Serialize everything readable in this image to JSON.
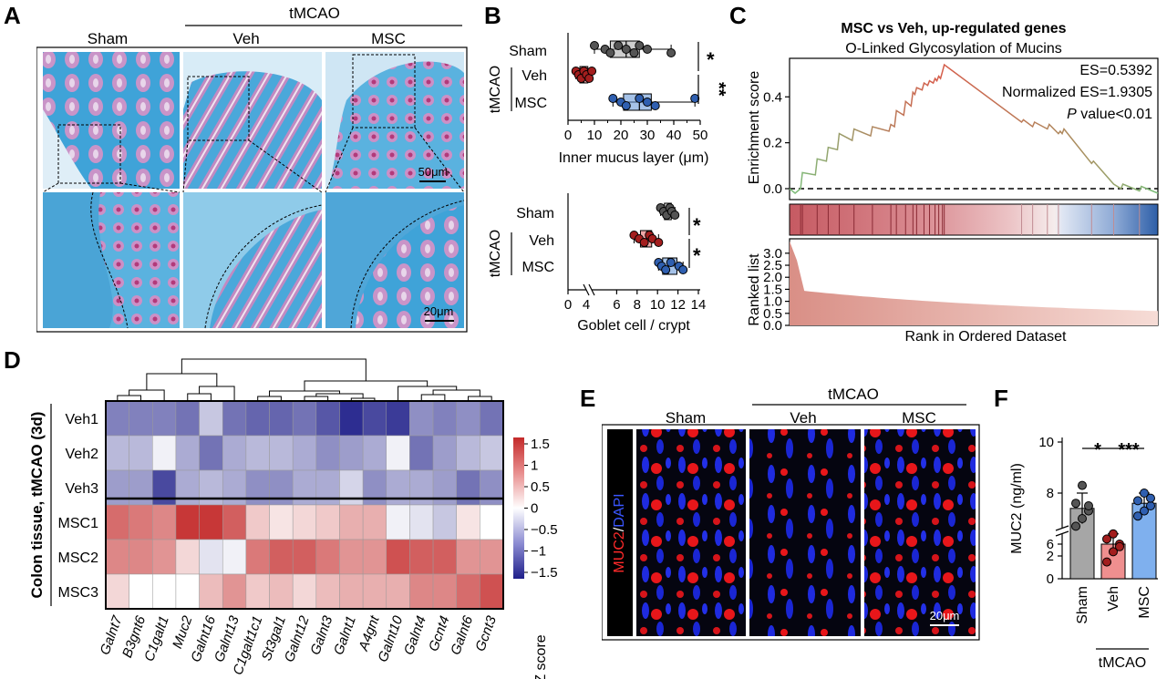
{
  "panels": {
    "A": "A",
    "B": "B",
    "C": "C",
    "D": "D",
    "E": "E",
    "F": "F"
  },
  "panel_a": {
    "group_title": "tMCAO",
    "columns": [
      "Sham",
      "Veh",
      "MSC"
    ],
    "scale_top": "50μm",
    "scale_bottom": "20μm"
  },
  "panel_b": {
    "group": "tMCAO",
    "top": {
      "xlabel": "Inner mucus layer (μm)",
      "ticks": [
        "0",
        "5",
        "10",
        "15",
        "20",
        "25",
        "30",
        "35",
        "40",
        "45",
        "50"
      ],
      "rows": [
        "Sham",
        "Veh",
        "MSC"
      ],
      "sig": [
        "*",
        "**"
      ]
    },
    "bottom": {
      "xlabel": "Goblet cell / crypt",
      "ticks": [
        "0",
        "6",
        "8",
        "10",
        "12",
        "14"
      ],
      "rows": [
        "Sham",
        "Veh",
        "MSC"
      ],
      "sig": [
        "*",
        "*"
      ]
    }
  },
  "panel_c": {
    "title": "MSC vs Veh, up-regulated genes",
    "subtitle": "O-Linked Glycosylation of Mucins",
    "es": "ES=0.5392",
    "nes": "Normalized ES=1.9305",
    "p_italic": "P",
    "p_rest": " value<0.01",
    "ylabel_top": "Enrichment score",
    "ylabel_bottom": "Ranked list",
    "yticks_top": [
      "0.0",
      "0.2",
      "0.4"
    ],
    "yticks_bottom": [
      "0.0",
      "0.5",
      "1.0",
      "1.5",
      "2.0",
      "2.5",
      "3.0"
    ],
    "xlabel": "Rank in Ordered Dataset"
  },
  "panel_d": {
    "ylabel": "Colon tissue, tMCAO (3d)",
    "rows": [
      "Veh1",
      "Veh2",
      "Veh3",
      "MSC1",
      "MSC2",
      "MSC3"
    ],
    "genes": [
      "Galnt7",
      "B3gnt6",
      "C1galt1",
      "Muc2",
      "Galnt16",
      "Galnt13",
      "C1galt1c1",
      "St3gal1",
      "Galnt12",
      "Galnt3",
      "Galnt1",
      "A4gnt",
      "Galnt10",
      "Galnt4",
      "Gcnt4",
      "Galnt6",
      "Gcnt3"
    ],
    "colorbar_ticks": [
      "1.5",
      "1",
      "0.5",
      "0",
      "−0.5",
      "−1",
      "−1.5"
    ],
    "colorbar_label": "Z score"
  },
  "panel_e": {
    "group_title": "tMCAO",
    "columns": [
      "Sham",
      "Veh",
      "MSC"
    ],
    "side_label_red": "MUC2",
    "side_label_sep": "/",
    "side_label_blue": "DAPI",
    "scale": "20μm"
  },
  "panel_f": {
    "ylabel": "MUC2 (ng/ml)",
    "yticks": [
      "0",
      "2",
      "6",
      "8",
      "10"
    ],
    "xlabels": [
      "Sham",
      "Veh",
      "MSC"
    ],
    "group": "tMCAO",
    "sig": [
      "*",
      "***"
    ]
  },
  "colors": {
    "sham": "#a6a6a6",
    "veh": "#e06060",
    "msc": "#5b8fd6",
    "tissue_blue": "#4aa6d6",
    "tissue_pink": "#c58fc3",
    "heat_red": "#c42a2a",
    "heat_blue": "#2a2a8c"
  },
  "chart_data": [
    {
      "type": "box",
      "panel": "B-top",
      "xlabel": "Inner mucus layer (μm)",
      "xlim": [
        0,
        50
      ],
      "categories": [
        "Sham",
        "Veh",
        "MSC"
      ],
      "values": {
        "Sham": [
          10,
          14,
          16,
          19,
          22,
          25,
          27,
          30,
          39
        ],
        "Veh": [
          3,
          4,
          5,
          6,
          7,
          8,
          9
        ],
        "MSC": [
          17,
          20,
          22,
          27,
          30,
          33,
          48
        ]
      }
    },
    {
      "type": "box",
      "panel": "B-bottom",
      "xlabel": "Goblet cell / crypt",
      "xlim": [
        0,
        14
      ],
      "categories": [
        "Sham",
        "Veh",
        "MSC"
      ],
      "values": {
        "Sham": [
          10.3,
          10.6,
          10.9,
          11.2,
          11.4,
          11.7
        ],
        "Veh": [
          7.7,
          8.2,
          8.7,
          9.2,
          9.5,
          10.1
        ],
        "MSC": [
          10.1,
          10.4,
          10.8,
          11.3,
          12.1,
          12.5
        ]
      }
    },
    {
      "type": "line",
      "panel": "C",
      "title": "MSC vs Veh, up-regulated genes",
      "subtitle": "O-Linked Glycosylation of Mucins",
      "ylabel": "Enrichment score",
      "xlabel": "Rank in Ordered Dataset",
      "ylim": [
        -0.03,
        0.58
      ],
      "x": [
        0,
        0.015,
        0.03,
        0.035,
        0.07,
        0.075,
        0.1,
        0.105,
        0.13,
        0.135,
        0.17,
        0.175,
        0.22,
        0.225,
        0.27,
        0.275,
        0.285,
        0.29,
        0.31,
        0.315,
        0.33,
        0.335,
        0.34,
        0.345,
        0.36,
        0.365,
        0.375,
        0.38,
        0.39,
        0.395,
        0.4,
        0.405,
        0.41,
        0.415,
        0.42,
        0.63,
        0.635,
        0.66,
        0.665,
        0.7,
        0.705,
        0.73,
        0.735,
        0.74,
        0.745,
        0.82,
        0.825,
        0.88,
        0.9,
        0.905,
        0.95,
        0.955,
        1.0
      ],
      "y": [
        0.0,
        -0.02,
        0.0,
        0.07,
        0.06,
        0.13,
        0.12,
        0.18,
        0.17,
        0.24,
        0.21,
        0.26,
        0.23,
        0.27,
        0.25,
        0.28,
        0.27,
        0.34,
        0.32,
        0.38,
        0.36,
        0.42,
        0.41,
        0.44,
        0.43,
        0.46,
        0.45,
        0.47,
        0.46,
        0.48,
        0.47,
        0.49,
        0.48,
        0.51,
        0.54,
        0.29,
        0.3,
        0.27,
        0.29,
        0.26,
        0.28,
        0.24,
        0.25,
        0.24,
        0.26,
        0.11,
        0.12,
        0.02,
        0.0,
        0.02,
        -0.01,
        0.01,
        -0.02
      ],
      "ranked_list_ylabel": "Ranked list",
      "ranked_list_ylim": [
        0,
        3.5
      ],
      "ranked_list_start": 3.5,
      "ranked_list_end": 0.3
    },
    {
      "type": "heatmap",
      "panel": "D",
      "rows": [
        "Veh1",
        "Veh2",
        "Veh3",
        "MSC1",
        "MSC2",
        "MSC3"
      ],
      "cols": [
        "Galnt7",
        "B3gnt6",
        "C1galt1",
        "Muc2",
        "Galnt16",
        "Galnt13",
        "C1galt1c1",
        "St3gal1",
        "Galnt12",
        "Galnt3",
        "Galnt1",
        "A4gnt",
        "Galnt10",
        "Galnt4",
        "Gcnt4",
        "Galnt6",
        "Gcnt3"
      ],
      "zlim": [
        -1.6,
        1.6
      ],
      "colorbar_label": "Z score",
      "values": [
        [
          -0.9,
          -0.9,
          -0.9,
          -1.0,
          -0.4,
          -1.0,
          -1.1,
          -1.1,
          -1.0,
          -1.2,
          -1.5,
          -1.3,
          -1.4,
          -0.8,
          -0.9,
          -0.8,
          -1.0
        ],
        [
          -0.5,
          -0.5,
          -0.1,
          -0.6,
          -1.0,
          -0.6,
          -0.5,
          -0.5,
          -0.6,
          -0.8,
          -0.7,
          -0.6,
          -0.1,
          -1.0,
          -0.7,
          -0.5,
          -0.4
        ],
        [
          -0.7,
          -0.7,
          -1.3,
          -0.6,
          -0.5,
          -0.6,
          -0.8,
          -0.8,
          -0.6,
          -0.6,
          -0.3,
          -0.8,
          -0.6,
          -0.6,
          -0.7,
          -1.0,
          -0.8
        ],
        [
          1.1,
          1.0,
          0.9,
          1.5,
          1.5,
          1.2,
          0.4,
          0.2,
          0.3,
          0.4,
          0.6,
          0.6,
          -0.1,
          -0.2,
          -0.4,
          0.2,
          0.0
        ],
        [
          0.9,
          0.9,
          0.8,
          0.3,
          -0.2,
          -0.1,
          1.0,
          1.2,
          1.2,
          1.0,
          0.8,
          0.8,
          1.3,
          1.2,
          1.2,
          0.8,
          0.8
        ],
        [
          0.3,
          0.0,
          0.0,
          0.0,
          0.5,
          0.8,
          0.4,
          0.5,
          0.3,
          0.5,
          0.6,
          0.6,
          0.6,
          0.9,
          0.9,
          1.1,
          1.3
        ]
      ]
    },
    {
      "type": "bar",
      "panel": "F",
      "ylabel": "MUC2 (ng/ml)",
      "categories": [
        "Sham",
        "Veh",
        "MSC"
      ],
      "values": [
        7.4,
        6.0,
        7.6
      ],
      "errors": [
        0.6,
        0.4,
        0.4
      ],
      "ylim": [
        0,
        10
      ],
      "points": {
        "Sham": [
          6.7,
          7.0,
          7.3,
          7.6,
          8.3,
          7.5
        ],
        "Veh": [
          5.3,
          5.7,
          6.0,
          6.2,
          6.4,
          5.9
        ],
        "MSC": [
          7.1,
          7.3,
          7.5,
          7.7,
          8.0,
          7.8
        ]
      }
    }
  ]
}
